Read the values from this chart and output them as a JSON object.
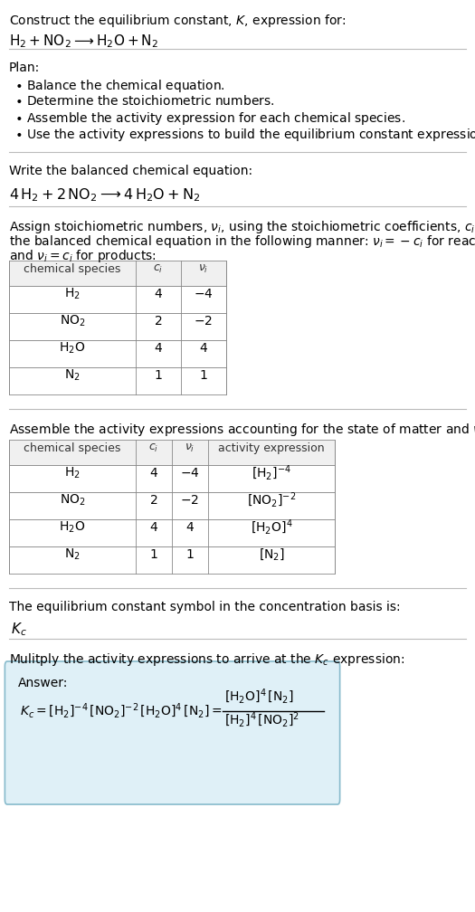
{
  "bg_color": "#ffffff",
  "table_header_bg": "#f0f0f0",
  "answer_box_bg": "#dff0f7",
  "answer_box_border": "#88bbcc",
  "text_color": "#000000",
  "separator_color": "#bbbbbb",
  "fig_width": 5.25,
  "fig_height": 10.08,
  "dpi": 100
}
